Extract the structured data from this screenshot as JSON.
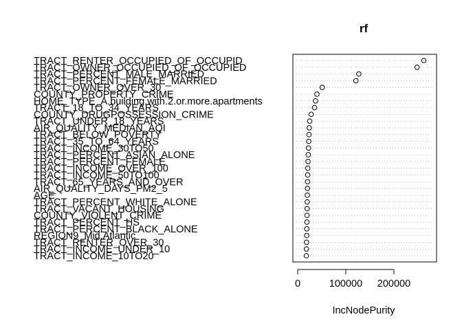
{
  "chart_data": {
    "type": "scatter",
    "title": "rf",
    "xlabel": "IncNodePurity",
    "ylabel": "",
    "xlim": [
      0,
      270000
    ],
    "x_ticks": [
      0,
      100000,
      200000
    ],
    "x_tick_labels": [
      "0",
      "100000",
      "200000"
    ],
    "grid": "dotted horizontal guide lines per variable",
    "variables": [
      {
        "label": "TRACT_RENTER_OCCUPIED_OF_OCCUPID",
        "value": 262000
      },
      {
        "label": "TRACT_OWNER_OCCUPIED_OF_OCCUPIED",
        "value": 248000
      },
      {
        "label": "TRACT_PERCENT_MALE_MARRIED",
        "value": 127000
      },
      {
        "label": "TRACT_PERCENT_FEMALE_MARRIED",
        "value": 121000
      },
      {
        "label": "TRACT_OWNER_OVER_30",
        "value": 51000
      },
      {
        "label": "COUNTY_PROPERTY_CRIME",
        "value": 40000
      },
      {
        "label": "HOME_TYPE_A.building.with.2.or.more.apartments",
        "value": 37000
      },
      {
        "label": "TRACT_18_TO_34_YEARS",
        "value": 35000
      },
      {
        "label": "COUNTY_DRUGPOSSESSION_CRIME",
        "value": 28000
      },
      {
        "label": "TRACT_UNDER_18_YEARS",
        "value": 25000
      },
      {
        "label": "AIR_QUALITY_MEDIAN_AQI",
        "value": 24000
      },
      {
        "label": "TRACT_BELOW_POVERTY",
        "value": 23500
      },
      {
        "label": "TRACT_35_TO_64_YEARS",
        "value": 23000
      },
      {
        "label": "TRACT_INCOME_30TO50",
        "value": 22500
      },
      {
        "label": "TRACT_PERCENT_ASIAN_ALONE",
        "value": 22000
      },
      {
        "label": "TRACT_PERCENT_FEMALE",
        "value": 21500
      },
      {
        "label": "TRACT_INCOME_OVER_100",
        "value": 21000
      },
      {
        "label": "TRACT_INCOME_50TO100",
        "value": 20800
      },
      {
        "label": "TRACT_65_YEARS_AND_OVER",
        "value": 20500
      },
      {
        "label": "AIR_QUALITY_DAYS_PM2_5",
        "value": 20300
      },
      {
        "label": "AGE",
        "value": 20000
      },
      {
        "label": "TRACT_PERCENT_WHITE_ALONE",
        "value": 19800
      },
      {
        "label": "TRACT_VACANT_HOUSING",
        "value": 19600
      },
      {
        "label": "COUNTY_VIOLENT_CRIME",
        "value": 19400
      },
      {
        "label": "TRACT_PERCENT_HS",
        "value": 19200
      },
      {
        "label": "TRACT_PERCENT_BLACK_ALONE",
        "value": 19000
      },
      {
        "label": "REGION9_Mid.Atlantic",
        "value": 18800
      },
      {
        "label": "TRACT_RENTER_OVER_30",
        "value": 18500
      },
      {
        "label": "TRACT_INCOME_UNDER_10",
        "value": 18200
      },
      {
        "label": "TRACT_INCOME_10TO20",
        "value": 18000
      }
    ]
  }
}
